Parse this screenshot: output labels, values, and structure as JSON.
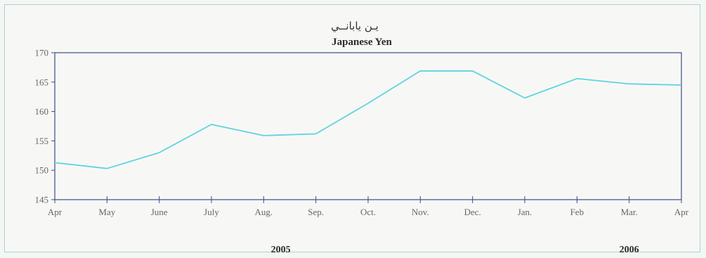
{
  "chart_data": {
    "type": "line",
    "title": "Japanese Yen",
    "title_arabic": "يـن يابانــي",
    "categories": [
      "Apr",
      "May",
      "June",
      "July",
      "Aug.",
      "Sep.",
      "Oct.",
      "Nov.",
      "Dec.",
      "Jan.",
      "Feb",
      "Mar.",
      "Apr"
    ],
    "series": [
      {
        "values": [
          151.3,
          150.3,
          153.0,
          157.8,
          155.9,
          156.2,
          161.4,
          166.9,
          166.9,
          162.3,
          165.6,
          164.7,
          164.5
        ]
      }
    ],
    "year_labels": [
      {
        "text": "2005",
        "category_index": 5
      },
      {
        "text": "2006",
        "category_index": 11
      }
    ],
    "ylim": [
      145,
      170
    ],
    "yticks": [
      145,
      150,
      155,
      160,
      165,
      170
    ],
    "grid": false,
    "line_color": "#5fd3e0",
    "axis_color": "#3d4a8a"
  }
}
